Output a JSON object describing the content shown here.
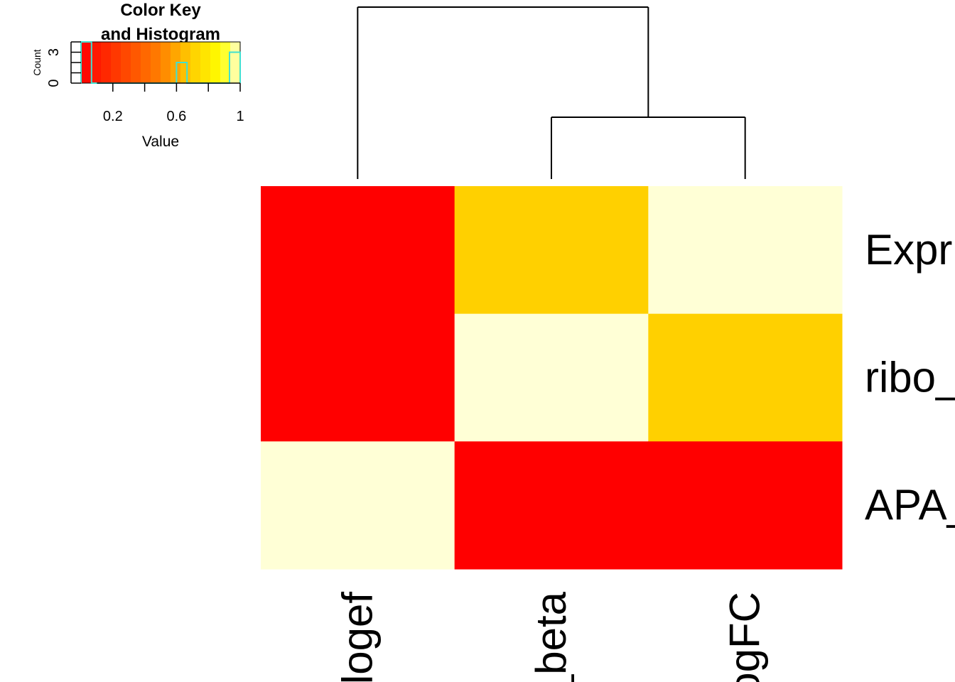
{
  "chart_data": {
    "type": "heatmap",
    "title": "",
    "rows": [
      "Expr",
      "ribo_",
      "APA_"
    ],
    "columns": [
      "logef",
      "_beta",
      "ogFC"
    ],
    "values": [
      [
        0.0,
        0.7,
        1.0
      ],
      [
        0.0,
        1.0,
        0.7
      ],
      [
        1.0,
        0.0,
        0.0
      ]
    ],
    "colorscale": "heat (red → orange → yellow → pale yellow)",
    "column_dendrogram": true,
    "row_dendrogram": false,
    "color_key": {
      "title_line1": "Color Key",
      "title_line2": "and Histogram",
      "xlabel": "Value",
      "ylabel": "Count",
      "range": [
        0,
        1
      ],
      "x_ticks": [
        "0.2",
        "0.6",
        "1"
      ],
      "y_ticks": [
        "0",
        "3"
      ],
      "histogram_color": "#40E0D0",
      "histogram_bins": [
        {
          "from": 0.0,
          "to": 0.066,
          "count": 4
        },
        {
          "from": 0.066,
          "to": 0.6,
          "count": 0
        },
        {
          "from": 0.6,
          "to": 0.666,
          "count": 2
        },
        {
          "from": 0.666,
          "to": 0.933,
          "count": 0
        },
        {
          "from": 0.933,
          "to": 1.0,
          "count": 3
        }
      ],
      "count_max": 4
    }
  }
}
